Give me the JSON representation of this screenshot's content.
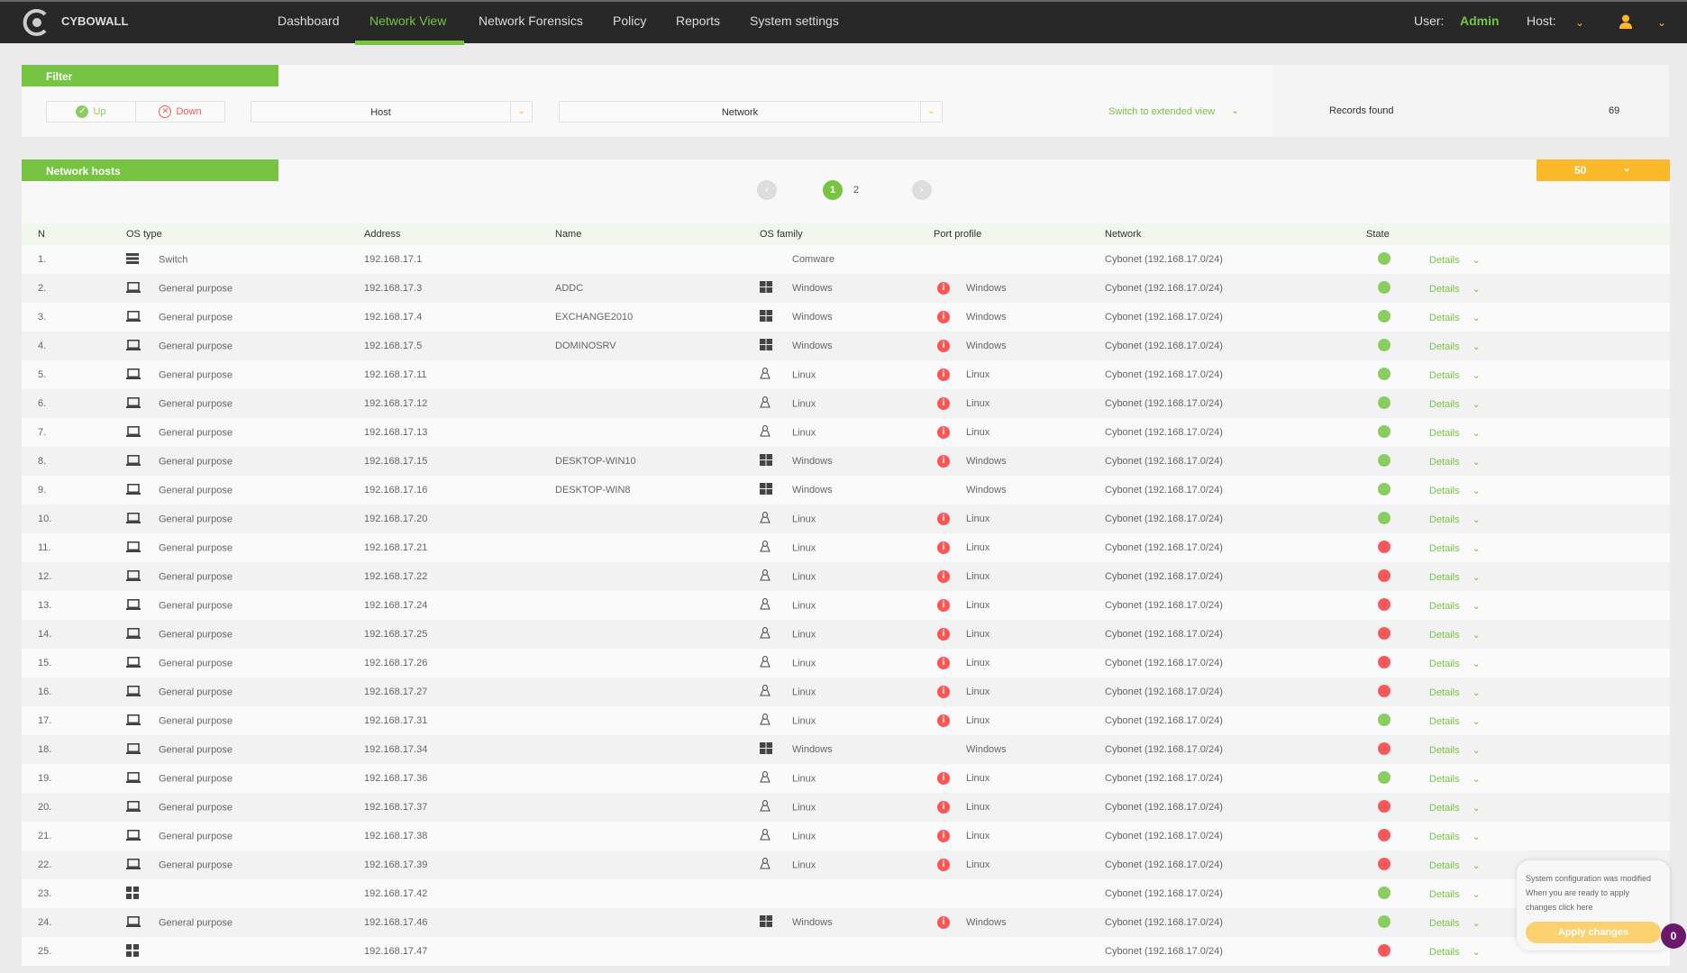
{
  "nav": {
    "brand": "CYBOWALL",
    "items": [
      "Dashboard",
      "Network View",
      "Network Forensics",
      "Policy",
      "Reports",
      "System settings"
    ],
    "active": "Network View",
    "user_label": "User:",
    "user": "Admin",
    "host_label": "Host:"
  },
  "filter": {
    "title": "Filter",
    "up": "Up",
    "down": "Down",
    "host": "Host",
    "network": "Network",
    "switch_view": "Switch to extended view",
    "records_label": "Records found",
    "records": "69"
  },
  "hosts": {
    "title": "Network hosts",
    "per_page": "50",
    "pages": [
      "1",
      "2"
    ],
    "current_page": "1"
  },
  "colors": {
    "accent": "#76c442",
    "up": "#8dcc63",
    "down": "#f55a5a",
    "warning": "#fbb829"
  },
  "table": {
    "headers": [
      "N",
      "OS type",
      "Address",
      "Name",
      "OS family",
      "Port profile",
      "Network",
      "State"
    ],
    "details_label": "Details",
    "rows": [
      {
        "n": "1.",
        "os_type": "Switch",
        "type_icon": "switch-icon",
        "address": "192.168.17.1",
        "name": "",
        "os_family": "Comware",
        "fam_icon": "",
        "port_alert": false,
        "port": "",
        "network": "Cybonet (192.168.17.0/24)",
        "state": "up"
      },
      {
        "n": "2.",
        "os_type": "General purpose",
        "type_icon": "laptop-icon",
        "address": "192.168.17.3",
        "name": "ADDC",
        "os_family": "Windows",
        "fam_icon": "windows-icon",
        "port_alert": true,
        "port": "Windows",
        "network": "Cybonet (192.168.17.0/24)",
        "state": "up"
      },
      {
        "n": "3.",
        "os_type": "General purpose",
        "type_icon": "laptop-icon",
        "address": "192.168.17.4",
        "name": "EXCHANGE2010",
        "os_family": "Windows",
        "fam_icon": "windows-icon",
        "port_alert": true,
        "port": "Windows",
        "network": "Cybonet (192.168.17.0/24)",
        "state": "up"
      },
      {
        "n": "4.",
        "os_type": "General purpose",
        "type_icon": "laptop-icon",
        "address": "192.168.17.5",
        "name": "DOMINOSRV",
        "os_family": "Windows",
        "fam_icon": "windows-icon",
        "port_alert": true,
        "port": "Windows",
        "network": "Cybonet (192.168.17.0/24)",
        "state": "up"
      },
      {
        "n": "5.",
        "os_type": "General purpose",
        "type_icon": "laptop-icon",
        "address": "192.168.17.11",
        "name": "",
        "os_family": "Linux",
        "fam_icon": "linux-icon",
        "port_alert": true,
        "port": "Linux",
        "network": "Cybonet (192.168.17.0/24)",
        "state": "up"
      },
      {
        "n": "6.",
        "os_type": "General purpose",
        "type_icon": "laptop-icon",
        "address": "192.168.17.12",
        "name": "",
        "os_family": "Linux",
        "fam_icon": "linux-icon",
        "port_alert": true,
        "port": "Linux",
        "network": "Cybonet (192.168.17.0/24)",
        "state": "up"
      },
      {
        "n": "7.",
        "os_type": "General purpose",
        "type_icon": "laptop-icon",
        "address": "192.168.17.13",
        "name": "",
        "os_family": "Linux",
        "fam_icon": "linux-icon",
        "port_alert": true,
        "port": "Linux",
        "network": "Cybonet (192.168.17.0/24)",
        "state": "up"
      },
      {
        "n": "8.",
        "os_type": "General purpose",
        "type_icon": "laptop-icon",
        "address": "192.168.17.15",
        "name": "DESKTOP-WIN10",
        "os_family": "Windows",
        "fam_icon": "windows-icon",
        "port_alert": true,
        "port": "Windows",
        "network": "Cybonet (192.168.17.0/24)",
        "state": "up"
      },
      {
        "n": "9.",
        "os_type": "General purpose",
        "type_icon": "laptop-icon",
        "address": "192.168.17.16",
        "name": "DESKTOP-WIN8",
        "os_family": "Windows",
        "fam_icon": "windows-icon",
        "port_alert": false,
        "port": "Windows",
        "network": "Cybonet (192.168.17.0/24)",
        "state": "up"
      },
      {
        "n": "10.",
        "os_type": "General purpose",
        "type_icon": "laptop-icon",
        "address": "192.168.17.20",
        "name": "",
        "os_family": "Linux",
        "fam_icon": "linux-icon",
        "port_alert": true,
        "port": "Linux",
        "network": "Cybonet (192.168.17.0/24)",
        "state": "up"
      },
      {
        "n": "11.",
        "os_type": "General purpose",
        "type_icon": "laptop-icon",
        "address": "192.168.17.21",
        "name": "",
        "os_family": "Linux",
        "fam_icon": "linux-icon",
        "port_alert": true,
        "port": "Linux",
        "network": "Cybonet (192.168.17.0/24)",
        "state": "down"
      },
      {
        "n": "12.",
        "os_type": "General purpose",
        "type_icon": "laptop-icon",
        "address": "192.168.17.22",
        "name": "",
        "os_family": "Linux",
        "fam_icon": "linux-icon",
        "port_alert": true,
        "port": "Linux",
        "network": "Cybonet (192.168.17.0/24)",
        "state": "down"
      },
      {
        "n": "13.",
        "os_type": "General purpose",
        "type_icon": "laptop-icon",
        "address": "192.168.17.24",
        "name": "",
        "os_family": "Linux",
        "fam_icon": "linux-icon",
        "port_alert": true,
        "port": "Linux",
        "network": "Cybonet (192.168.17.0/24)",
        "state": "down"
      },
      {
        "n": "14.",
        "os_type": "General purpose",
        "type_icon": "laptop-icon",
        "address": "192.168.17.25",
        "name": "",
        "os_family": "Linux",
        "fam_icon": "linux-icon",
        "port_alert": true,
        "port": "Linux",
        "network": "Cybonet (192.168.17.0/24)",
        "state": "down"
      },
      {
        "n": "15.",
        "os_type": "General purpose",
        "type_icon": "laptop-icon",
        "address": "192.168.17.26",
        "name": "",
        "os_family": "Linux",
        "fam_icon": "linux-icon",
        "port_alert": true,
        "port": "Linux",
        "network": "Cybonet (192.168.17.0/24)",
        "state": "down"
      },
      {
        "n": "16.",
        "os_type": "General purpose",
        "type_icon": "laptop-icon",
        "address": "192.168.17.27",
        "name": "",
        "os_family": "Linux",
        "fam_icon": "linux-icon",
        "port_alert": true,
        "port": "Linux",
        "network": "Cybonet (192.168.17.0/24)",
        "state": "down"
      },
      {
        "n": "17.",
        "os_type": "General purpose",
        "type_icon": "laptop-icon",
        "address": "192.168.17.31",
        "name": "",
        "os_family": "Linux",
        "fam_icon": "linux-icon",
        "port_alert": true,
        "port": "Linux",
        "network": "Cybonet (192.168.17.0/24)",
        "state": "up"
      },
      {
        "n": "18.",
        "os_type": "General purpose",
        "type_icon": "laptop-icon",
        "address": "192.168.17.34",
        "name": "",
        "os_family": "Windows",
        "fam_icon": "windows-icon",
        "port_alert": false,
        "port": "Windows",
        "network": "Cybonet (192.168.17.0/24)",
        "state": "down"
      },
      {
        "n": "19.",
        "os_type": "General purpose",
        "type_icon": "laptop-icon",
        "address": "192.168.17.36",
        "name": "",
        "os_family": "Linux",
        "fam_icon": "linux-icon",
        "port_alert": true,
        "port": "Linux",
        "network": "Cybonet (192.168.17.0/24)",
        "state": "up"
      },
      {
        "n": "20.",
        "os_type": "General purpose",
        "type_icon": "laptop-icon",
        "address": "192.168.17.37",
        "name": "",
        "os_family": "Linux",
        "fam_icon": "linux-icon",
        "port_alert": true,
        "port": "Linux",
        "network": "Cybonet (192.168.17.0/24)",
        "state": "down"
      },
      {
        "n": "21.",
        "os_type": "General purpose",
        "type_icon": "laptop-icon",
        "address": "192.168.17.38",
        "name": "",
        "os_family": "Linux",
        "fam_icon": "linux-icon",
        "port_alert": true,
        "port": "Linux",
        "network": "Cybonet (192.168.17.0/24)",
        "state": "down"
      },
      {
        "n": "22.",
        "os_type": "General purpose",
        "type_icon": "laptop-icon",
        "address": "192.168.17.39",
        "name": "",
        "os_family": "Linux",
        "fam_icon": "linux-icon",
        "port_alert": true,
        "port": "Linux",
        "network": "Cybonet (192.168.17.0/24)",
        "state": "down"
      },
      {
        "n": "23.",
        "os_type": "",
        "type_icon": "grid-device-icon",
        "address": "192.168.17.42",
        "name": "",
        "os_family": "",
        "fam_icon": "",
        "port_alert": false,
        "port": "",
        "network": "Cybonet (192.168.17.0/24)",
        "state": "up"
      },
      {
        "n": "24.",
        "os_type": "General purpose",
        "type_icon": "laptop-icon",
        "address": "192.168.17.46",
        "name": "",
        "os_family": "Windows",
        "fam_icon": "windows-icon",
        "port_alert": true,
        "port": "Windows",
        "network": "Cybonet (192.168.17.0/24)",
        "state": "up"
      },
      {
        "n": "25.",
        "os_type": "",
        "type_icon": "grid-device-icon",
        "address": "192.168.17.47",
        "name": "",
        "os_family": "",
        "fam_icon": "",
        "port_alert": false,
        "port": "",
        "network": "Cybonet (192.168.17.0/24)",
        "state": "down"
      }
    ]
  },
  "toast": {
    "line1": "System configuration was modified",
    "line2": "When you are ready to apply changes click here",
    "button": "Apply changes",
    "count": "0"
  }
}
